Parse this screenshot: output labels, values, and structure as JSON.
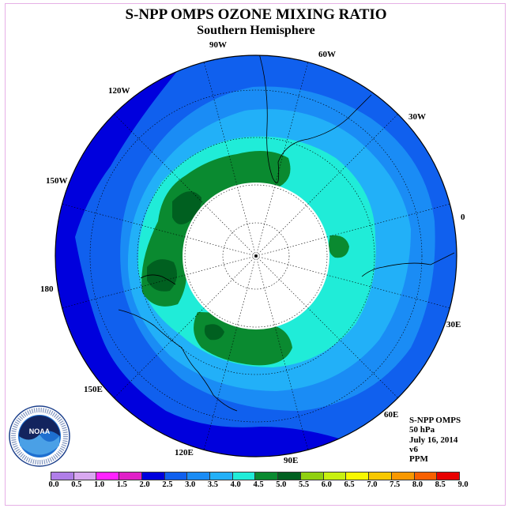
{
  "title": "S-NPP OMPS OZONE MIXING RATIO",
  "subtitle": "Southern Hemisphere",
  "projection": "south-polar-stereographic",
  "longitude_labels": [
    "90W",
    "60W",
    "30W",
    "0",
    "30E",
    "60E",
    "90E",
    "120E",
    "150E",
    "180",
    "150W",
    "120W"
  ],
  "info": {
    "instrument": "S-NPP OMPS",
    "pressure_level": "50 hPa",
    "date": "July 16, 2014",
    "version": "v6",
    "units": "PPM"
  },
  "legend": {
    "ticks": [
      "0.0",
      "0.5",
      "1.0",
      "1.5",
      "2.0",
      "2.5",
      "3.0",
      "3.5",
      "4.0",
      "4.5",
      "5.0",
      "5.5",
      "6.0",
      "6.5",
      "7.0",
      "7.5",
      "8.0",
      "8.5",
      "9.0"
    ],
    "colors": [
      "#b07ee8",
      "#d8a8f0",
      "#ff22ff",
      "#e020c8",
      "#0000dd",
      "#1060ee",
      "#1a8cf5",
      "#22b0f8",
      "#20ecd8",
      "#0a8a30",
      "#006020",
      "#90d010",
      "#c8f010",
      "#f8f800",
      "#f8c800",
      "#f89800",
      "#f86000",
      "#e80000",
      "#8b5a3c"
    ]
  },
  "logo": {
    "name": "NOAA",
    "ring_text": "NATIONAL OCEANIC AND ATMOSPHERIC ADMINISTRATION · U.S. DEPARTMENT OF COMMERCE"
  }
}
